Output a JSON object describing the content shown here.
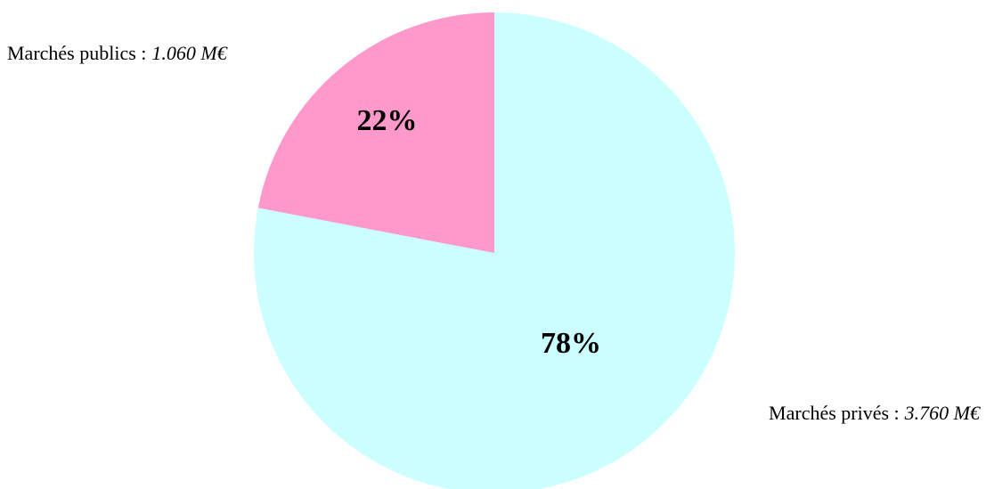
{
  "chart_data": {
    "type": "pie",
    "categories": [
      "Marchés privés :",
      "Marchés publics :"
    ],
    "amounts": [
      "3.760 M€",
      "1.060 M€"
    ],
    "values": [
      78,
      22
    ],
    "value_labels": [
      "78%",
      "22%"
    ],
    "colors": [
      "#ccffff",
      "#ff99cc"
    ]
  }
}
